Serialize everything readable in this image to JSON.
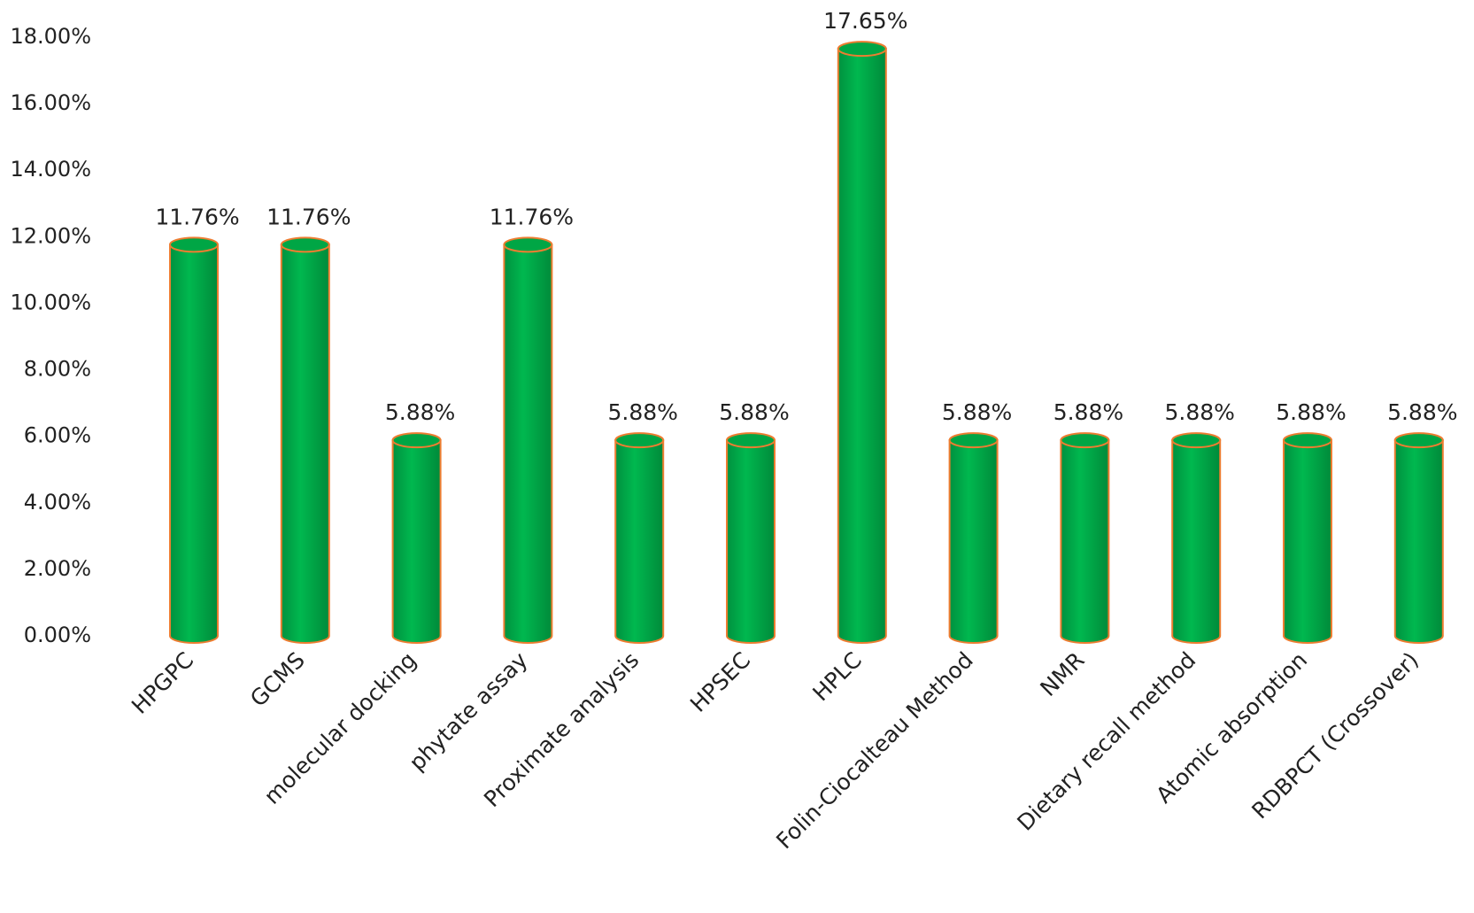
{
  "chart_data": {
    "type": "bar",
    "categories": [
      "HPGPC",
      "GCMS",
      "molecular docking",
      "phytate assay",
      "Proximate analysis",
      "HPSEC",
      "HPLC",
      "Folin-Ciocalteau Method",
      "NMR",
      "Dietary recall method",
      "Atomic absorption",
      "RDBPCT (Crossover)"
    ],
    "values": [
      11.76,
      11.76,
      5.88,
      11.76,
      5.88,
      5.88,
      17.65,
      5.88,
      5.88,
      5.88,
      5.88,
      5.88
    ],
    "value_labels": [
      "11.76%",
      "11.76%",
      "5.88%",
      "11.76%",
      "5.88%",
      "5.88%",
      "17.65%",
      "5.88%",
      "5.88%",
      "5.88%",
      "5.88%",
      "5.88%"
    ],
    "color": "#00b050",
    "edge_color": "#ed7d31",
    "ylim": [
      0,
      18
    ],
    "yticks": [
      {
        "value": 0,
        "label": "0.00%"
      },
      {
        "value": 2,
        "label": "2.00%"
      },
      {
        "value": 4,
        "label": "4.00%"
      },
      {
        "value": 6,
        "label": "6.00%"
      },
      {
        "value": 8,
        "label": "8.00%"
      },
      {
        "value": 10,
        "label": "10.00%"
      },
      {
        "value": 12,
        "label": "12.00%"
      },
      {
        "value": 14,
        "label": "14.00%"
      },
      {
        "value": 16,
        "label": "16.00%"
      },
      {
        "value": 18,
        "label": "18.00%"
      }
    ],
    "grid": false
  }
}
